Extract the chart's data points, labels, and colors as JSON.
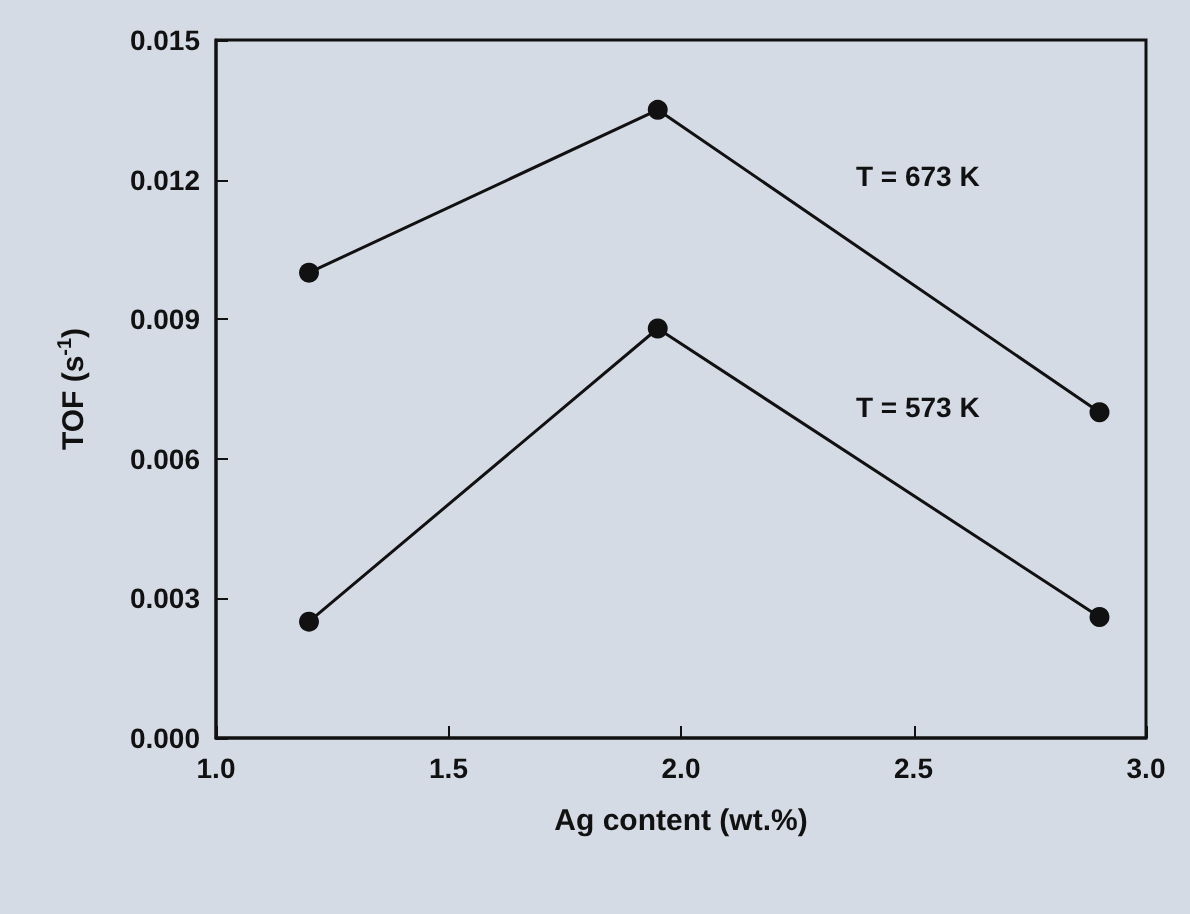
{
  "chart_data": {
    "type": "line",
    "xlabel": "Ag content (wt.%)",
    "ylabel": "TOF (s$^{-1}$)",
    "x": [
      1.2,
      1.95,
      2.9
    ],
    "series": [
      {
        "name": "T = 673 K",
        "color": "#111111",
        "values": [
          0.01,
          0.0135,
          0.007
        ]
      },
      {
        "name": "T = 573 K",
        "color": "#111111",
        "values": [
          0.0025,
          0.0088,
          0.0026
        ]
      }
    ],
    "xlim": [
      1.0,
      3.0
    ],
    "xticks": [
      {
        "value": 1.0,
        "label": "1.0"
      },
      {
        "value": 1.5,
        "label": "1.5"
      },
      {
        "value": 2.0,
        "label": "2.0"
      },
      {
        "value": 2.5,
        "label": "2.5"
      },
      {
        "value": 3.0,
        "label": "3.0"
      }
    ],
    "ylim": [
      0,
      0.015
    ],
    "yticks": [
      {
        "value": 0,
        "label": "0.000"
      },
      {
        "value": 0.003,
        "label": "0.003"
      },
      {
        "value": 0.006,
        "label": "0.006"
      },
      {
        "value": 0.009,
        "label": "0.009"
      },
      {
        "value": 0.012,
        "label": "0.012"
      },
      {
        "value": 0.015,
        "label": "0.015"
      }
    ],
    "grid": false,
    "legend": false,
    "marker": "circle",
    "line_style": "solid"
  }
}
